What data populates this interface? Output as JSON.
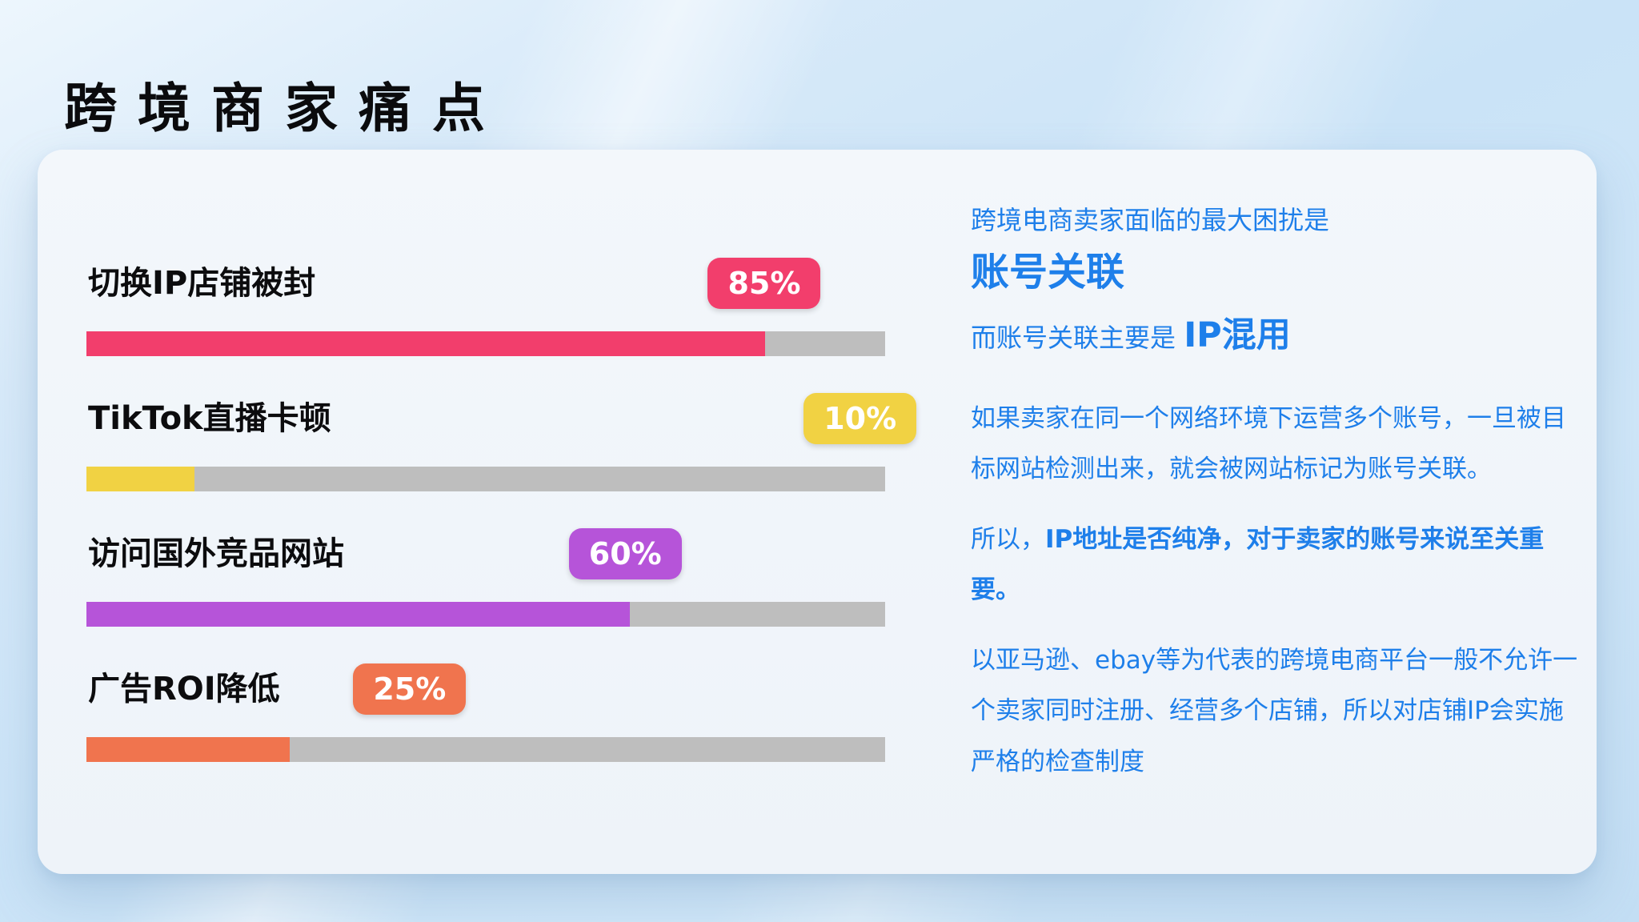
{
  "page": {
    "title": "跨境商家痛点",
    "title_color": "#0b0b0d",
    "background_top": "#EDF6FD",
    "background_bottom": "#C3DEF4"
  },
  "card": {
    "background": "#F1F5FA"
  },
  "chart_data": {
    "type": "bar",
    "orientation": "horizontal",
    "title": "",
    "categories": [
      "切换IP店铺被封",
      "TikTok直播卡顿",
      "访问国外竞品网站",
      "广告ROI降低"
    ],
    "values": [
      85,
      10,
      60,
      25
    ],
    "value_labels": [
      "85%",
      "10%",
      "60%",
      "25%"
    ],
    "bar_colors": [
      "#F23E6C",
      "#F1D243",
      "#B654D9",
      "#F0744E"
    ],
    "track_color": "#BEBEBE",
    "bar_fill_pct": [
      85,
      13.5,
      68,
      25.5
    ],
    "badge_left_pct": [
      77.8,
      89.8,
      60.4,
      33.4
    ],
    "xlim": [
      0,
      100
    ],
    "grid": false,
    "legend_position": "none"
  },
  "right_panel": {
    "text_color": "#1E7FEA",
    "intro_line": "跨境电商卖家面临的最大困扰是",
    "headline": "账号关联",
    "subline_prefix": "而账号关联主要是 ",
    "subline_highlight": "IP混用",
    "para_1": "如果卖家在同一个网络环境下运营多个账号，一旦被目标网站检测出来，就会被网站标记为账号关联。",
    "para_2_prefix": "所以，",
    "para_2_bold": "IP地址是否纯净，对于卖家的账号来说至关重要。",
    "para_3": "以亚马逊、ebay等为代表的跨境电商平台一般不允许一个卖家同时注册、经营多个店铺，所以对店铺IP会实施严格的检查制度"
  }
}
